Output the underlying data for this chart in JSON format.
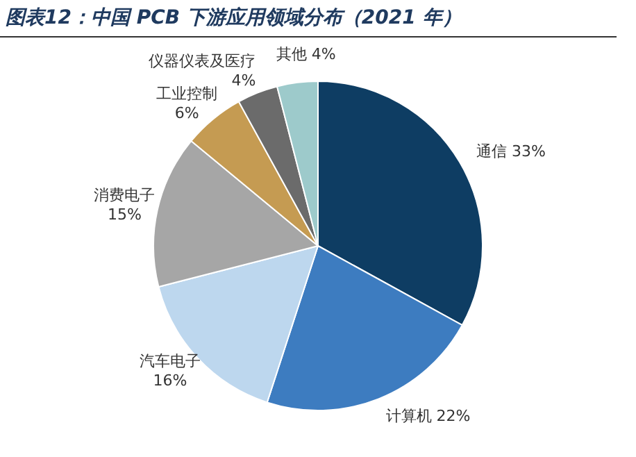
{
  "chart_data": {
    "type": "pie",
    "title": "图表12：中国 PCB 下游应用领域分布（2021 年）",
    "categories": [
      "通信",
      "计算机",
      "汽车电子",
      "消费电子",
      "工业控制",
      "仪器仪表及医疗",
      "其他"
    ],
    "values": [
      33,
      22,
      16,
      15,
      6,
      4,
      4
    ],
    "value_labels": [
      "33%",
      "22%",
      "16%",
      "15%",
      "6%",
      "4%",
      "4%"
    ],
    "colors": [
      "#0e3d63",
      "#3d7cc0",
      "#bdd7ee",
      "#a6a6a6",
      "#c59b52",
      "#6b6b6b",
      "#9dcacb"
    ],
    "legend": false
  }
}
